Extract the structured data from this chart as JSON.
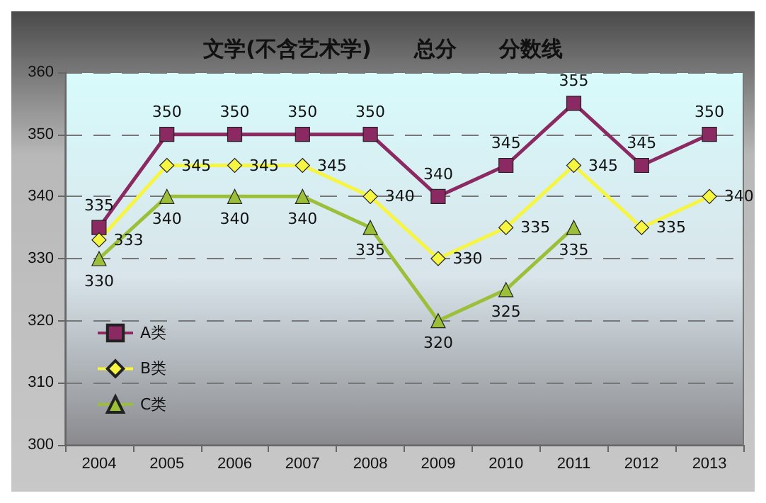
{
  "chart_data": {
    "type": "line",
    "title": "文学(不含艺术学)　　总分　　分数线",
    "categories": [
      "2004",
      "2005",
      "2006",
      "2007",
      "2008",
      "2009",
      "2010",
      "2011",
      "2012",
      "2013"
    ],
    "series": [
      {
        "name": "A类",
        "color": "#8b2a62",
        "marker": "square",
        "values": [
          335,
          350,
          350,
          350,
          350,
          340,
          345,
          355,
          345,
          350
        ]
      },
      {
        "name": "B类",
        "color": "#f5f542",
        "marker": "diamond",
        "values": [
          333,
          345,
          345,
          345,
          340,
          330,
          335,
          345,
          335,
          340
        ]
      },
      {
        "name": "C类",
        "color": "#9cbf3a",
        "marker": "triangle",
        "values": [
          330,
          340,
          340,
          340,
          335,
          320,
          325,
          335,
          null,
          null
        ]
      }
    ],
    "ylim": [
      300,
      360
    ],
    "yticks": [
      300,
      310,
      320,
      330,
      340,
      350,
      360
    ],
    "grid": "y",
    "legend": "bottom left",
    "data_labels": true
  }
}
